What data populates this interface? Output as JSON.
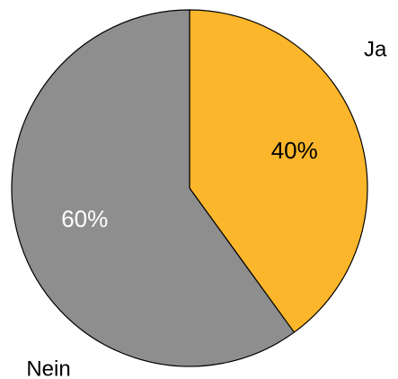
{
  "chart_data": {
    "type": "pie",
    "title": "",
    "start_angle_deg": 0,
    "direction": "clockwise",
    "slices": [
      {
        "label": "Ja",
        "value": 40,
        "value_label": "40%",
        "color": "#FBB62B",
        "value_label_color": "#000000"
      },
      {
        "label": "Nein",
        "value": 60,
        "value_label": "60%",
        "color": "#8E8E8E",
        "value_label_color": "#FFFFFF"
      }
    ],
    "legend": "none",
    "edge_color": "#000000"
  }
}
